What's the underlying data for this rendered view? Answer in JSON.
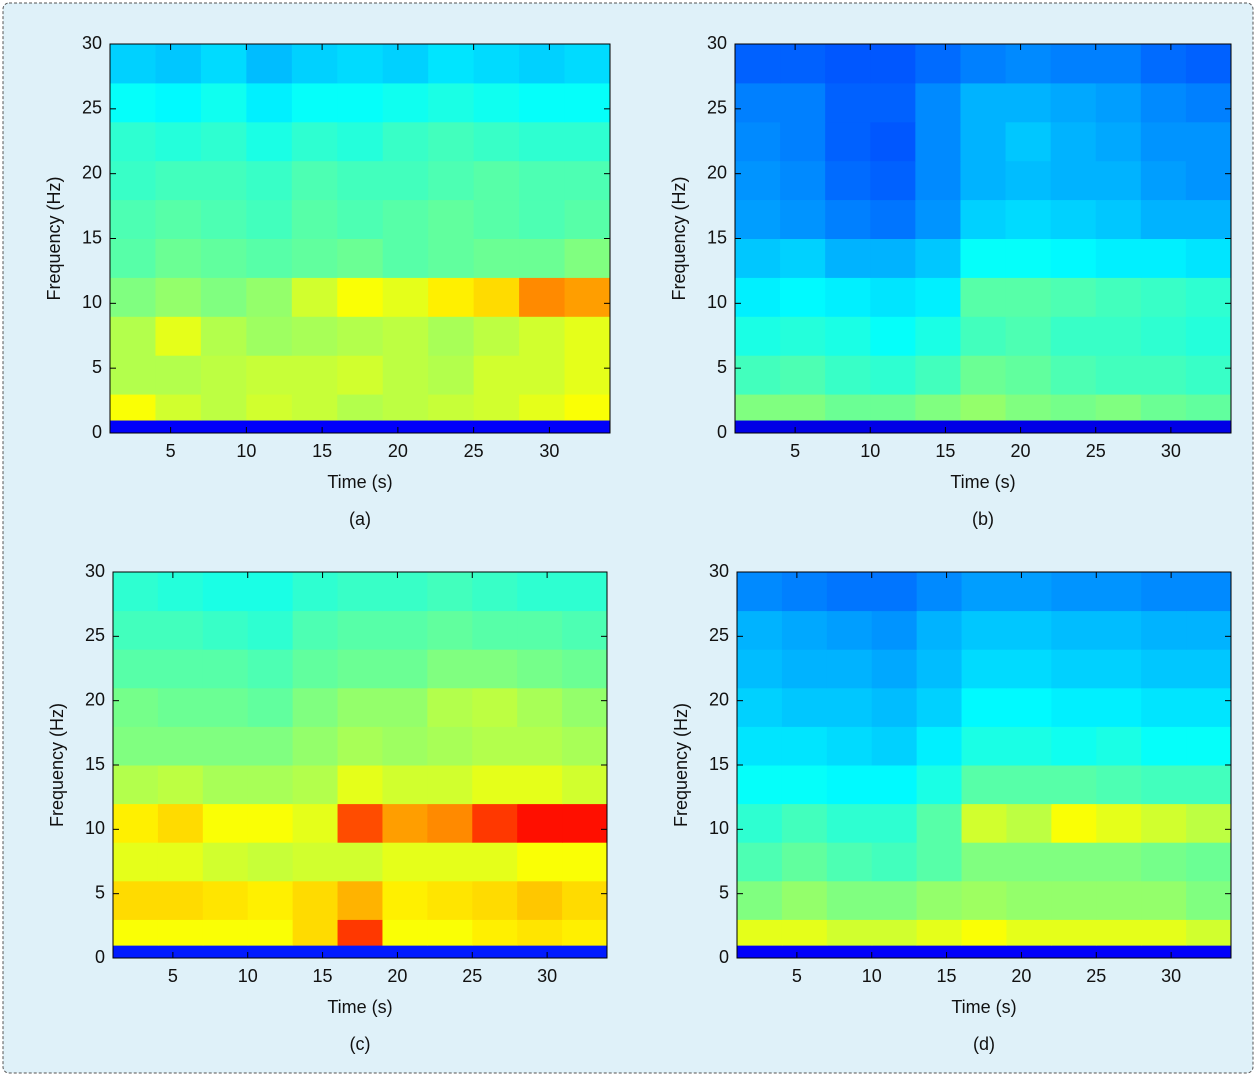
{
  "chart_data": [
    {
      "type": "heatmap",
      "caption": "(a)",
      "xlabel": "Time (s)",
      "ylabel": "Frequency (Hz)",
      "colormap": "jet",
      "zlim": [
        0,
        1
      ],
      "xlim": [
        1,
        34
      ],
      "ylim": [
        0,
        30
      ],
      "xticks": [
        5,
        10,
        15,
        20,
        25,
        30
      ],
      "yticks": [
        0,
        5,
        10,
        15,
        20,
        25,
        30
      ],
      "xbins": [
        1,
        4,
        7,
        10,
        13,
        16,
        19,
        22,
        25,
        28,
        31,
        34
      ],
      "ybins": [
        0,
        1,
        3,
        6,
        9,
        12,
        15,
        18,
        21,
        24,
        27,
        30
      ],
      "z": [
        [
          0.12,
          0.12,
          0.12,
          0.12,
          0.12,
          0.12,
          0.12,
          0.12,
          0.12,
          0.12,
          0.12
        ],
        [
          0.62,
          0.58,
          0.56,
          0.58,
          0.57,
          0.55,
          0.56,
          0.57,
          0.58,
          0.6,
          0.62
        ],
        [
          0.55,
          0.55,
          0.56,
          0.57,
          0.57,
          0.58,
          0.56,
          0.55,
          0.58,
          0.58,
          0.6
        ],
        [
          0.55,
          0.6,
          0.55,
          0.53,
          0.54,
          0.55,
          0.56,
          0.54,
          0.56,
          0.58,
          0.6
        ],
        [
          0.5,
          0.52,
          0.5,
          0.52,
          0.58,
          0.62,
          0.6,
          0.64,
          0.66,
          0.74,
          0.72
        ],
        [
          0.46,
          0.48,
          0.47,
          0.46,
          0.47,
          0.48,
          0.46,
          0.47,
          0.48,
          0.48,
          0.5
        ],
        [
          0.45,
          0.46,
          0.45,
          0.44,
          0.46,
          0.45,
          0.46,
          0.47,
          0.46,
          0.45,
          0.46
        ],
        [
          0.43,
          0.44,
          0.44,
          0.43,
          0.45,
          0.44,
          0.44,
          0.45,
          0.46,
          0.45,
          0.45
        ],
        [
          0.42,
          0.41,
          0.42,
          0.4,
          0.42,
          0.41,
          0.43,
          0.44,
          0.43,
          0.42,
          0.42
        ],
        [
          0.38,
          0.37,
          0.39,
          0.36,
          0.38,
          0.38,
          0.39,
          0.4,
          0.39,
          0.38,
          0.38
        ],
        [
          0.33,
          0.32,
          0.34,
          0.31,
          0.33,
          0.34,
          0.33,
          0.35,
          0.34,
          0.33,
          0.34
        ]
      ]
    },
    {
      "type": "heatmap",
      "caption": "(b)",
      "xlabel": "Time (s)",
      "ylabel": "Frequency (Hz)",
      "colormap": "jet",
      "zlim": [
        0,
        1
      ],
      "xlim": [
        1,
        34
      ],
      "ylim": [
        0,
        30
      ],
      "xticks": [
        5,
        10,
        15,
        20,
        25,
        30
      ],
      "yticks": [
        0,
        5,
        10,
        15,
        20,
        25,
        30
      ],
      "xbins": [
        1,
        4,
        7,
        10,
        13,
        16,
        19,
        22,
        25,
        28,
        31,
        34
      ],
      "ybins": [
        0,
        1,
        3,
        6,
        9,
        12,
        15,
        18,
        21,
        24,
        27,
        30
      ],
      "z": [
        [
          0.1,
          0.1,
          0.1,
          0.1,
          0.1,
          0.1,
          0.1,
          0.1,
          0.1,
          0.1,
          0.1
        ],
        [
          0.5,
          0.5,
          0.48,
          0.48,
          0.5,
          0.52,
          0.5,
          0.49,
          0.5,
          0.48,
          0.47
        ],
        [
          0.44,
          0.45,
          0.43,
          0.42,
          0.44,
          0.48,
          0.47,
          0.45,
          0.44,
          0.44,
          0.43
        ],
        [
          0.4,
          0.41,
          0.4,
          0.38,
          0.4,
          0.44,
          0.45,
          0.43,
          0.43,
          0.42,
          0.41
        ],
        [
          0.36,
          0.37,
          0.36,
          0.35,
          0.36,
          0.46,
          0.46,
          0.45,
          0.44,
          0.43,
          0.42
        ],
        [
          0.32,
          0.33,
          0.3,
          0.3,
          0.32,
          0.38,
          0.38,
          0.37,
          0.36,
          0.36,
          0.35
        ],
        [
          0.28,
          0.27,
          0.25,
          0.24,
          0.27,
          0.33,
          0.34,
          0.33,
          0.32,
          0.3,
          0.3
        ],
        [
          0.27,
          0.26,
          0.23,
          0.22,
          0.26,
          0.3,
          0.31,
          0.3,
          0.3,
          0.28,
          0.27
        ],
        [
          0.26,
          0.25,
          0.22,
          0.21,
          0.26,
          0.3,
          0.32,
          0.3,
          0.29,
          0.27,
          0.27
        ],
        [
          0.25,
          0.25,
          0.22,
          0.22,
          0.26,
          0.3,
          0.3,
          0.29,
          0.28,
          0.26,
          0.25
        ],
        [
          0.22,
          0.22,
          0.21,
          0.21,
          0.23,
          0.25,
          0.26,
          0.25,
          0.25,
          0.23,
          0.22
        ]
      ]
    },
    {
      "type": "heatmap",
      "caption": "(c)",
      "xlabel": "Time (s)",
      "ylabel": "Frequency (Hz)",
      "colormap": "jet",
      "zlim": [
        0,
        1
      ],
      "xlim": [
        1,
        34
      ],
      "ylim": [
        0,
        30
      ],
      "xticks": [
        5,
        10,
        15,
        20,
        25,
        30
      ],
      "yticks": [
        0,
        5,
        10,
        15,
        20,
        25,
        30
      ],
      "xbins": [
        1,
        4,
        7,
        10,
        13,
        16,
        19,
        22,
        25,
        28,
        31,
        34
      ],
      "ybins": [
        0,
        1,
        3,
        6,
        9,
        12,
        15,
        18,
        21,
        24,
        27,
        30
      ],
      "z": [
        [
          0.15,
          0.15,
          0.15,
          0.15,
          0.15,
          0.15,
          0.15,
          0.15,
          0.15,
          0.15,
          0.15
        ],
        [
          0.62,
          0.62,
          0.62,
          0.62,
          0.66,
          0.82,
          0.62,
          0.62,
          0.64,
          0.65,
          0.64
        ],
        [
          0.66,
          0.66,
          0.65,
          0.64,
          0.66,
          0.7,
          0.64,
          0.65,
          0.66,
          0.68,
          0.66
        ],
        [
          0.6,
          0.6,
          0.58,
          0.57,
          0.58,
          0.58,
          0.6,
          0.6,
          0.6,
          0.62,
          0.62
        ],
        [
          0.64,
          0.66,
          0.62,
          0.62,
          0.6,
          0.8,
          0.72,
          0.74,
          0.82,
          0.86,
          0.86
        ],
        [
          0.55,
          0.56,
          0.54,
          0.54,
          0.55,
          0.6,
          0.58,
          0.58,
          0.6,
          0.6,
          0.58
        ],
        [
          0.5,
          0.5,
          0.5,
          0.5,
          0.52,
          0.54,
          0.53,
          0.54,
          0.55,
          0.55,
          0.54
        ],
        [
          0.49,
          0.48,
          0.48,
          0.47,
          0.5,
          0.52,
          0.52,
          0.55,
          0.56,
          0.54,
          0.52
        ],
        [
          0.46,
          0.46,
          0.46,
          0.45,
          0.47,
          0.48,
          0.48,
          0.5,
          0.5,
          0.49,
          0.48
        ],
        [
          0.44,
          0.44,
          0.43,
          0.42,
          0.45,
          0.46,
          0.46,
          0.47,
          0.46,
          0.46,
          0.45
        ],
        [
          0.42,
          0.41,
          0.4,
          0.4,
          0.42,
          0.43,
          0.43,
          0.44,
          0.43,
          0.42,
          0.42
        ]
      ]
    },
    {
      "type": "heatmap",
      "caption": "(d)",
      "xlabel": "Time (s)",
      "ylabel": "Frequency (Hz)",
      "colormap": "jet",
      "zlim": [
        0,
        1
      ],
      "xlim": [
        1,
        34
      ],
      "ylim": [
        0,
        30
      ],
      "xticks": [
        5,
        10,
        15,
        20,
        25,
        30
      ],
      "yticks": [
        0,
        5,
        10,
        15,
        20,
        25,
        30
      ],
      "xbins": [
        1,
        4,
        7,
        10,
        13,
        16,
        19,
        22,
        25,
        28,
        31,
        34
      ],
      "ybins": [
        0,
        1,
        3,
        6,
        9,
        12,
        15,
        18,
        21,
        24,
        27,
        30
      ],
      "z": [
        [
          0.12,
          0.12,
          0.12,
          0.12,
          0.12,
          0.12,
          0.12,
          0.12,
          0.12,
          0.12,
          0.12
        ],
        [
          0.6,
          0.6,
          0.58,
          0.58,
          0.6,
          0.62,
          0.6,
          0.6,
          0.6,
          0.6,
          0.58
        ],
        [
          0.5,
          0.52,
          0.5,
          0.5,
          0.52,
          0.53,
          0.52,
          0.52,
          0.52,
          0.52,
          0.5
        ],
        [
          0.45,
          0.47,
          0.45,
          0.44,
          0.46,
          0.5,
          0.5,
          0.5,
          0.5,
          0.49,
          0.48
        ],
        [
          0.42,
          0.44,
          0.42,
          0.42,
          0.46,
          0.58,
          0.56,
          0.62,
          0.6,
          0.58,
          0.56
        ],
        [
          0.38,
          0.38,
          0.37,
          0.37,
          0.4,
          0.46,
          0.46,
          0.46,
          0.45,
          0.44,
          0.44
        ],
        [
          0.35,
          0.35,
          0.34,
          0.33,
          0.36,
          0.4,
          0.4,
          0.39,
          0.4,
          0.38,
          0.38
        ],
        [
          0.33,
          0.32,
          0.32,
          0.31,
          0.33,
          0.37,
          0.37,
          0.36,
          0.36,
          0.35,
          0.35
        ],
        [
          0.31,
          0.3,
          0.3,
          0.29,
          0.31,
          0.34,
          0.34,
          0.33,
          0.33,
          0.32,
          0.32
        ],
        [
          0.3,
          0.29,
          0.28,
          0.27,
          0.3,
          0.32,
          0.32,
          0.31,
          0.31,
          0.3,
          0.3
        ],
        [
          0.26,
          0.25,
          0.24,
          0.24,
          0.26,
          0.28,
          0.28,
          0.27,
          0.27,
          0.26,
          0.26
        ]
      ]
    }
  ]
}
